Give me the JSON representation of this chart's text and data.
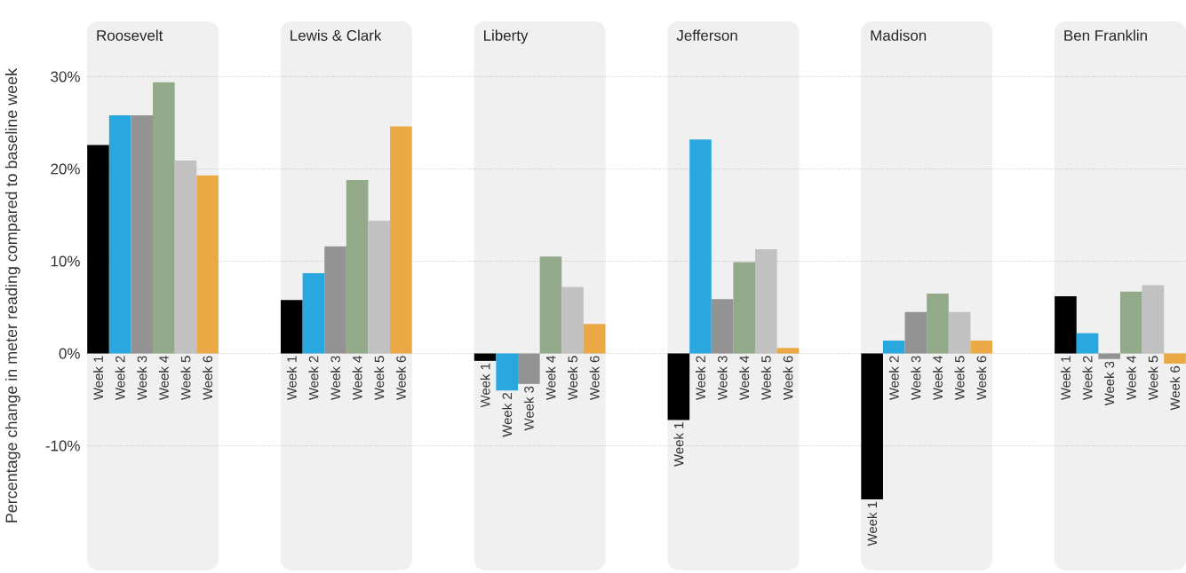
{
  "chart_data": {
    "type": "bar",
    "ylabel": "Percentage change in meter reading compared to baseline week",
    "categories": [
      "Roosevelt",
      "Lewis & Clark",
      "Liberty",
      "Jefferson",
      "Madison",
      "Ben Franklin"
    ],
    "series": [
      {
        "name": "Week 1",
        "color": "#000000",
        "values": [
          22.6,
          5.8,
          -0.8,
          -7.2,
          -15.8,
          6.2
        ]
      },
      {
        "name": "Week 2",
        "color": "#29a8e0",
        "values": [
          25.8,
          8.7,
          -4.0,
          23.2,
          1.4,
          2.2
        ]
      },
      {
        "name": "Week 3",
        "color": "#939393",
        "values": [
          25.8,
          11.6,
          -3.3,
          5.9,
          4.5,
          -0.6
        ]
      },
      {
        "name": "Week 4",
        "color": "#92a98a",
        "values": [
          29.4,
          18.8,
          10.5,
          9.9,
          6.5,
          6.7
        ]
      },
      {
        "name": "Week 5",
        "color": "#c1c1c1",
        "values": [
          20.9,
          14.4,
          7.2,
          11.3,
          4.5,
          7.4
        ]
      },
      {
        "name": "Week 6",
        "color": "#eaa944",
        "values": [
          19.3,
          24.6,
          3.2,
          0.6,
          1.4,
          -1.1
        ]
      }
    ],
    "ylim": [
      -23.5,
      36
    ],
    "yticks": [
      {
        "value": -10,
        "label": "-10%"
      },
      {
        "value": 0,
        "label": "0%"
      },
      {
        "value": 10,
        "label": "10%"
      },
      {
        "value": 20,
        "label": "20%"
      },
      {
        "value": 30,
        "label": "30%"
      }
    ],
    "grid": "y"
  }
}
